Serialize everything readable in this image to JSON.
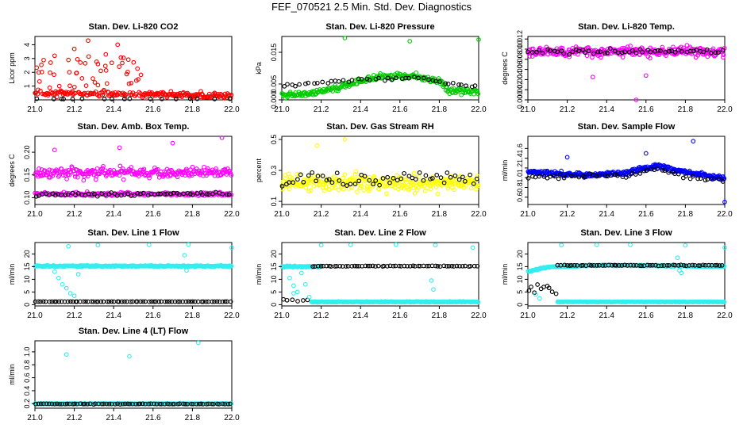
{
  "page": {
    "title": "FEF_070521  2.5 Min. Std. Dev. Diagnostics"
  },
  "colors": {
    "black": "#000000"
  },
  "chart_data": [
    {
      "type": "scatter",
      "title": "Stan. Dev. Li-820 CO2",
      "xlabel": "",
      "ylabel": "Licor ppm",
      "color": "#ff0000",
      "xlim": [
        21.0,
        22.0
      ],
      "ylim": [
        0.0,
        4.6
      ],
      "xticks": [
        21.0,
        21.2,
        21.4,
        21.6,
        21.8,
        22.0
      ],
      "xtick_labels": [
        "21.0",
        "21.2",
        "21.4",
        "21.6",
        "21.8",
        "22.0"
      ],
      "yticks": [
        1,
        2,
        3,
        4
      ],
      "ytick_labels": [
        "1",
        "2",
        "3",
        "4"
      ],
      "series": [
        {
          "name": "colored",
          "color": "#ff0000",
          "gen": {
            "base": 0.5,
            "base_end": 0.3,
            "noise": 0.3,
            "spike_prob": 0.35,
            "spike_amp": 2.6,
            "spike_end": 21.55,
            "n": 260,
            "min": 0.05
          }
        },
        {
          "name": "black",
          "color": "#000000",
          "gen": {
            "base": 0.05,
            "noise": 0.05,
            "n": 55,
            "min": 0.0
          }
        }
      ],
      "outliers": [
        [
          21.27,
          4.3
        ],
        [
          21.42,
          4.0
        ],
        [
          21.2,
          3.7
        ],
        [
          21.36,
          3.3
        ],
        [
          21.1,
          3.2
        ],
        [
          21.45,
          3.05
        ],
        [
          21.32,
          2.6
        ],
        [
          21.17,
          2.9
        ],
        [
          21.08,
          2.7
        ]
      ]
    },
    {
      "type": "scatter",
      "title": "Stan. Dev. Li-820 Pressure",
      "xlabel": "",
      "ylabel": "kPa",
      "color": "#00cc00",
      "xlim": [
        21.0,
        22.0
      ],
      "ylim": [
        0.0,
        0.02
      ],
      "xticks": [
        21.0,
        21.2,
        21.4,
        21.6,
        21.8,
        22.0
      ],
      "xtick_labels": [
        "21.0",
        "21.2",
        "21.4",
        "21.6",
        "21.8",
        "22.0"
      ],
      "yticks": [
        0.0,
        0.005,
        0.015
      ],
      "ytick_labels": [
        "0.000",
        "0.005",
        "0.015"
      ],
      "series": [
        {
          "name": "colored",
          "color": "#00cc00",
          "gen": {
            "curve": [
              [
                21.0,
                0.0015
              ],
              [
                21.15,
                0.002
              ],
              [
                21.35,
                0.005
              ],
              [
                21.5,
                0.0075
              ],
              [
                21.7,
                0.0072
              ],
              [
                21.8,
                0.006
              ],
              [
                21.85,
                0.003
              ],
              [
                22.0,
                0.0025
              ]
            ],
            "noise": 0.0014,
            "n": 260,
            "min": 0.0
          }
        },
        {
          "name": "black",
          "color": "#000000",
          "gen": {
            "curve": [
              [
                21.0,
                0.0045
              ],
              [
                21.4,
                0.0065
              ],
              [
                21.7,
                0.007
              ],
              [
                21.85,
                0.005
              ],
              [
                22.0,
                0.004
              ]
            ],
            "noise": 0.0007,
            "n": 45,
            "min": 0.0
          }
        }
      ],
      "outliers": [
        [
          21.32,
          0.0195
        ],
        [
          21.65,
          0.0185
        ],
        [
          22.0,
          0.019
        ]
      ]
    },
    {
      "type": "scatter",
      "title": "Stan. Dev. Li-820 Temp.",
      "xlabel": "",
      "ylabel": "degrees C",
      "color": "#ff00ff",
      "xlim": [
        21.0,
        22.0
      ],
      "ylim": [
        0.0,
        0.0125
      ],
      "xticks": [
        21.0,
        21.2,
        21.4,
        21.6,
        21.8,
        22.0
      ],
      "xtick_labels": [
        "21.0",
        "21.2",
        "21.4",
        "21.6",
        "21.8",
        "22.0"
      ],
      "yticks": [
        0.0,
        0.002,
        0.004,
        0.006,
        0.008,
        0.01,
        0.012
      ],
      "ytick_labels": [
        "0.000",
        "0.002",
        "0.004",
        "0.006",
        "0.008",
        "0.010",
        "0.012"
      ],
      "series": [
        {
          "name": "colored",
          "color": "#ff00ff",
          "gen": {
            "base": 0.0095,
            "noise": 0.0014,
            "n": 320,
            "min": 0.004
          }
        },
        {
          "name": "black",
          "color": "#000000",
          "gen": {
            "base": 0.0095,
            "noise": 0.0008,
            "n": 55,
            "min": 0.006
          }
        }
      ],
      "outliers": [
        [
          21.55,
          0.0
        ],
        [
          21.33,
          0.0045
        ],
        [
          21.6,
          0.0048
        ]
      ]
    },
    {
      "type": "scatter",
      "title": "Stan. Dev. Amb. Box Temp.",
      "xlabel": "",
      "ylabel": "degrees C",
      "color": "#ff00ff",
      "xlim": [
        21.0,
        22.0
      ],
      "ylim": [
        0.085,
        0.235
      ],
      "xticks": [
        21.0,
        21.2,
        21.4,
        21.6,
        21.8,
        22.0
      ],
      "xtick_labels": [
        "21.0",
        "21.2",
        "21.4",
        "21.6",
        "21.8",
        "22.0"
      ],
      "yticks": [
        0.1,
        0.15,
        0.2
      ],
      "ytick_labels": [
        "0.10",
        "0.15",
        "0.20"
      ],
      "series": [
        {
          "name": "colored-upper",
          "color": "#ff00ff",
          "gen": {
            "base": 0.155,
            "noise": 0.018,
            "n": 260,
            "min": 0.095
          }
        },
        {
          "name": "colored-lower",
          "color": "#ff00ff",
          "gen": {
            "base": 0.108,
            "noise": 0.006,
            "n": 200,
            "min": 0.09
          }
        },
        {
          "name": "black",
          "color": "#000000",
          "gen": {
            "base": 0.108,
            "noise": 0.006,
            "n": 60,
            "min": 0.092
          }
        }
      ],
      "outliers": [
        [
          21.95,
          0.232
        ],
        [
          21.7,
          0.22
        ],
        [
          21.1,
          0.205
        ],
        [
          21.43,
          0.21
        ]
      ]
    },
    {
      "type": "scatter",
      "title": "Stan. Dev. Gas Stream RH",
      "xlabel": "",
      "ylabel": "percent",
      "color": "#ffff00",
      "xlim": [
        21.0,
        22.0
      ],
      "ylim": [
        0.08,
        0.52
      ],
      "xticks": [
        21.0,
        21.2,
        21.4,
        21.6,
        21.8,
        22.0
      ],
      "xtick_labels": [
        "21.0",
        "21.2",
        "21.4",
        "21.6",
        "21.8",
        "22.0"
      ],
      "yticks": [
        0.1,
        0.3,
        0.5
      ],
      "ytick_labels": [
        "0.1",
        "0.3",
        "0.5"
      ],
      "series": [
        {
          "name": "colored",
          "color": "#ffff00",
          "gen": {
            "base": 0.22,
            "noise": 0.075,
            "n": 320,
            "min": 0.1
          }
        },
        {
          "name": "black",
          "color": "#000000",
          "gen": {
            "base": 0.24,
            "noise": 0.07,
            "n": 55,
            "min": 0.12
          }
        }
      ],
      "outliers": [
        [
          21.32,
          0.5
        ],
        [
          21.18,
          0.46
        ]
      ]
    },
    {
      "type": "scatter",
      "title": "Stan. Dev. Sample Flow",
      "xlabel": "",
      "ylabel": "ml/min",
      "color": "#0000ff",
      "xlim": [
        21.0,
        22.0
      ],
      "ylim": [
        0.45,
        1.85
      ],
      "xticks": [
        21.0,
        21.2,
        21.4,
        21.6,
        21.8,
        22.0
      ],
      "xtick_labels": [
        "21.0",
        "21.2",
        "21.4",
        "21.6",
        "21.8",
        "22.0"
      ],
      "yticks": [
        0.6,
        0.8,
        1.0,
        1.2,
        1.4,
        1.6
      ],
      "ytick_labels": [
        "0.6",
        "0.8",
        "1.0",
        "1.2",
        "1.4",
        "1.6"
      ],
      "series": [
        {
          "name": "colored",
          "color": "#0000ff",
          "gen": {
            "curve": [
              [
                21.0,
                1.12
              ],
              [
                21.3,
                1.05
              ],
              [
                21.5,
                1.1
              ],
              [
                21.65,
                1.25
              ],
              [
                21.8,
                1.12
              ],
              [
                22.0,
                0.98
              ]
            ],
            "noise": 0.06,
            "n": 330,
            "min": 0.7
          }
        },
        {
          "name": "black",
          "color": "#000000",
          "gen": {
            "curve": [
              [
                21.0,
                1.0
              ],
              [
                21.5,
                1.05
              ],
              [
                21.65,
                1.2
              ],
              [
                21.8,
                1.0
              ],
              [
                22.0,
                0.95
              ]
            ],
            "noise": 0.06,
            "n": 55,
            "min": 0.7
          }
        }
      ],
      "outliers": [
        [
          21.84,
          1.75
        ],
        [
          22.0,
          0.5
        ],
        [
          21.2,
          1.42
        ],
        [
          21.6,
          1.5
        ]
      ]
    },
    {
      "type": "scatter",
      "title": "Stan. Dev. Line 1 Flow",
      "xlabel": "",
      "ylabel": "ml/min",
      "color": "#33eeee",
      "xlim": [
        21.0,
        22.0
      ],
      "ylim": [
        -0.5,
        24.5
      ],
      "xticks": [
        21.0,
        21.2,
        21.4,
        21.6,
        21.8,
        22.0
      ],
      "xtick_labels": [
        "21.0",
        "21.2",
        "21.4",
        "21.6",
        "21.8",
        "22.0"
      ],
      "yticks": [
        0,
        5,
        10,
        15,
        20
      ],
      "ytick_labels": [
        "0",
        "5",
        "10",
        "15",
        "20"
      ],
      "series": [
        {
          "name": "colored",
          "color": "#33eeee",
          "gen": {
            "base": 15.2,
            "noise": 0.4,
            "n": 330,
            "min": 12
          }
        },
        {
          "name": "black",
          "color": "#000000",
          "gen": {
            "base": 1.2,
            "noise": 0.05,
            "n": 75,
            "min": 0.5
          }
        }
      ],
      "outliers": [
        [
          21.17,
          23.0
        ],
        [
          21.32,
          23.5
        ],
        [
          21.58,
          23.6
        ],
        [
          21.78,
          23.7
        ],
        [
          22.0,
          22.5
        ],
        [
          21.1,
          13.0
        ],
        [
          21.12,
          10.5
        ],
        [
          21.14,
          8.0
        ],
        [
          21.16,
          6.5
        ],
        [
          21.18,
          4.5
        ],
        [
          21.2,
          3.5
        ],
        [
          21.76,
          19.5
        ],
        [
          21.77,
          13.5
        ],
        [
          21.22,
          12.0
        ]
      ]
    },
    {
      "type": "scatter",
      "title": "Stan. Dev. Line 2 Flow",
      "xlabel": "",
      "ylabel": "ml/min",
      "color": "#33eeee",
      "xlim": [
        21.0,
        22.0
      ],
      "ylim": [
        -0.5,
        24.5
      ],
      "xticks": [
        21.0,
        21.2,
        21.4,
        21.6,
        21.8,
        22.0
      ],
      "xtick_labels": [
        "21.0",
        "21.2",
        "21.4",
        "21.6",
        "21.8",
        "22.0"
      ],
      "yticks": [
        0,
        5,
        10,
        15,
        20
      ],
      "ytick_labels": [
        "0",
        "5",
        "10",
        "15",
        "20"
      ],
      "series": [
        {
          "name": "colored-high",
          "color": "#33eeee",
          "gen": {
            "base": 15.0,
            "noise": 0.5,
            "n": 70,
            "xmax": 21.2,
            "min": 10
          }
        },
        {
          "name": "colored-low",
          "color": "#33eeee",
          "gen": {
            "base": 1.1,
            "noise": 0.25,
            "n": 300,
            "xmin": 21.15,
            "min": 0.5
          }
        },
        {
          "name": "black-high",
          "color": "#000000",
          "gen": {
            "base": 15.2,
            "noise": 0.2,
            "n": 60,
            "xmin": 21.15,
            "min": 13
          }
        },
        {
          "name": "black-low",
          "color": "#000000",
          "gen": {
            "base": 1.8,
            "noise": 0.8,
            "n": 6,
            "xmax": 21.15,
            "min": 0.8
          }
        }
      ],
      "outliers": [
        [
          21.2,
          23.5
        ],
        [
          21.35,
          23.6
        ],
        [
          21.58,
          23.7
        ],
        [
          21.78,
          23.5
        ],
        [
          21.97,
          22.5
        ],
        [
          21.04,
          10.5
        ],
        [
          21.06,
          7.5
        ],
        [
          21.08,
          5.0
        ],
        [
          21.1,
          12.5
        ],
        [
          21.12,
          8.0
        ],
        [
          21.14,
          3.0
        ],
        [
          21.76,
          9.5
        ],
        [
          21.77,
          6.0
        ],
        [
          21.06,
          4.5
        ]
      ]
    },
    {
      "type": "scatter",
      "title": "Stan. Dev. Line 3 Flow",
      "xlabel": "",
      "ylabel": "ml/min",
      "color": "#33eeee",
      "xlim": [
        21.0,
        22.0
      ],
      "ylim": [
        -0.5,
        24.5
      ],
      "xticks": [
        21.0,
        21.2,
        21.4,
        21.6,
        21.8,
        22.0
      ],
      "xtick_labels": [
        "21.0",
        "21.2",
        "21.4",
        "21.6",
        "21.8",
        "22.0"
      ],
      "yticks": [
        0,
        5,
        10,
        15,
        20
      ],
      "ytick_labels": [
        "0",
        "5",
        "10",
        "15",
        "20"
      ],
      "series": [
        {
          "name": "colored-high",
          "color": "#33eeee",
          "gen": {
            "curve": [
              [
                21.0,
                13.0
              ],
              [
                21.1,
                14.8
              ],
              [
                21.4,
                15.6
              ],
              [
                21.7,
                15.3
              ],
              [
                22.0,
                15.0
              ]
            ],
            "noise": 0.35,
            "n": 300,
            "min": 10
          }
        },
        {
          "name": "colored-low",
          "color": "#33eeee",
          "gen": {
            "base": 1.1,
            "noise": 0.15,
            "n": 220,
            "xmin": 21.15,
            "min": 0.6
          }
        },
        {
          "name": "black-high",
          "color": "#000000",
          "gen": {
            "base": 15.5,
            "noise": 0.25,
            "n": 60,
            "xmin": 21.15,
            "min": 13
          }
        },
        {
          "name": "black-low",
          "color": "#000000",
          "gen": {
            "base": 6.0,
            "noise": 3.5,
            "n": 10,
            "xmax": 21.15,
            "min": 1.0
          }
        }
      ],
      "outliers": [
        [
          21.17,
          23.5
        ],
        [
          21.35,
          23.6
        ],
        [
          21.52,
          23.6
        ],
        [
          21.8,
          23.4
        ],
        [
          22.0,
          22.5
        ],
        [
          21.76,
          18.5
        ],
        [
          21.77,
          13.5
        ],
        [
          21.78,
          12.5
        ],
        [
          21.04,
          4.0
        ],
        [
          21.06,
          2.5
        ]
      ]
    },
    {
      "type": "scatter",
      "title": "Stan. Dev. Line 4 (LT) Flow",
      "xlabel": "",
      "ylabel": "ml/min",
      "color": "#33eeee",
      "xlim": [
        21.0,
        22.0
      ],
      "ylim": [
        0.13,
        1.17
      ],
      "xticks": [
        21.0,
        21.2,
        21.4,
        21.6,
        21.8,
        22.0
      ],
      "xtick_labels": [
        "21.0",
        "21.2",
        "21.4",
        "21.6",
        "21.8",
        "22.0"
      ],
      "yticks": [
        0.2,
        0.4,
        0.6,
        0.8,
        1.0
      ],
      "ytick_labels": [
        "0.2",
        "0.4",
        "0.6",
        "0.8",
        "1.0"
      ],
      "series": [
        {
          "name": "colored",
          "color": "#33eeee",
          "gen": {
            "base": 0.2,
            "noise": 0.006,
            "n": 330,
            "min": 0.17
          }
        },
        {
          "name": "black",
          "color": "#000000",
          "gen": {
            "base": 0.195,
            "noise": 0.006,
            "n": 75,
            "min": 0.17
          }
        }
      ],
      "outliers": [
        [
          21.16,
          0.96
        ],
        [
          21.48,
          0.93
        ],
        [
          21.83,
          1.14
        ]
      ]
    }
  ]
}
